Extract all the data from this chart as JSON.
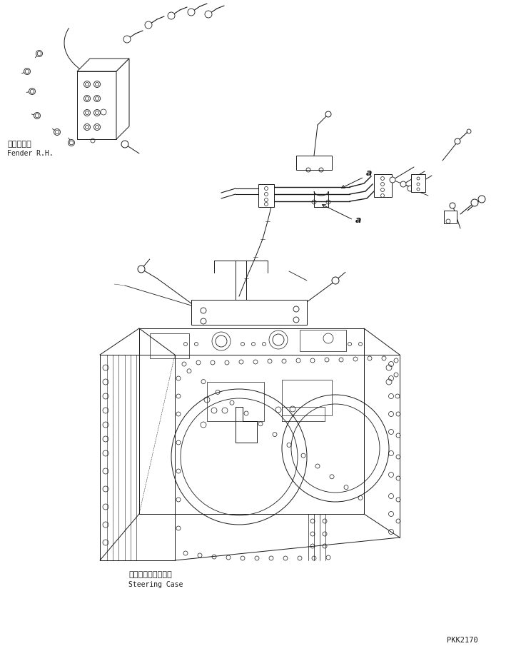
{
  "bg_color": "#ffffff",
  "line_color": "#1a1a1a",
  "text_color": "#1a1a1a",
  "watermark": "PKK2170",
  "label_fender_jp": "フェンダ右",
  "label_fender_en": "Fender R.H.",
  "label_steering_jp": "ステアリングケース",
  "label_steering_en": "Steering Case",
  "label_a": "a",
  "figsize": [
    7.23,
    9.19
  ],
  "dpi": 100
}
